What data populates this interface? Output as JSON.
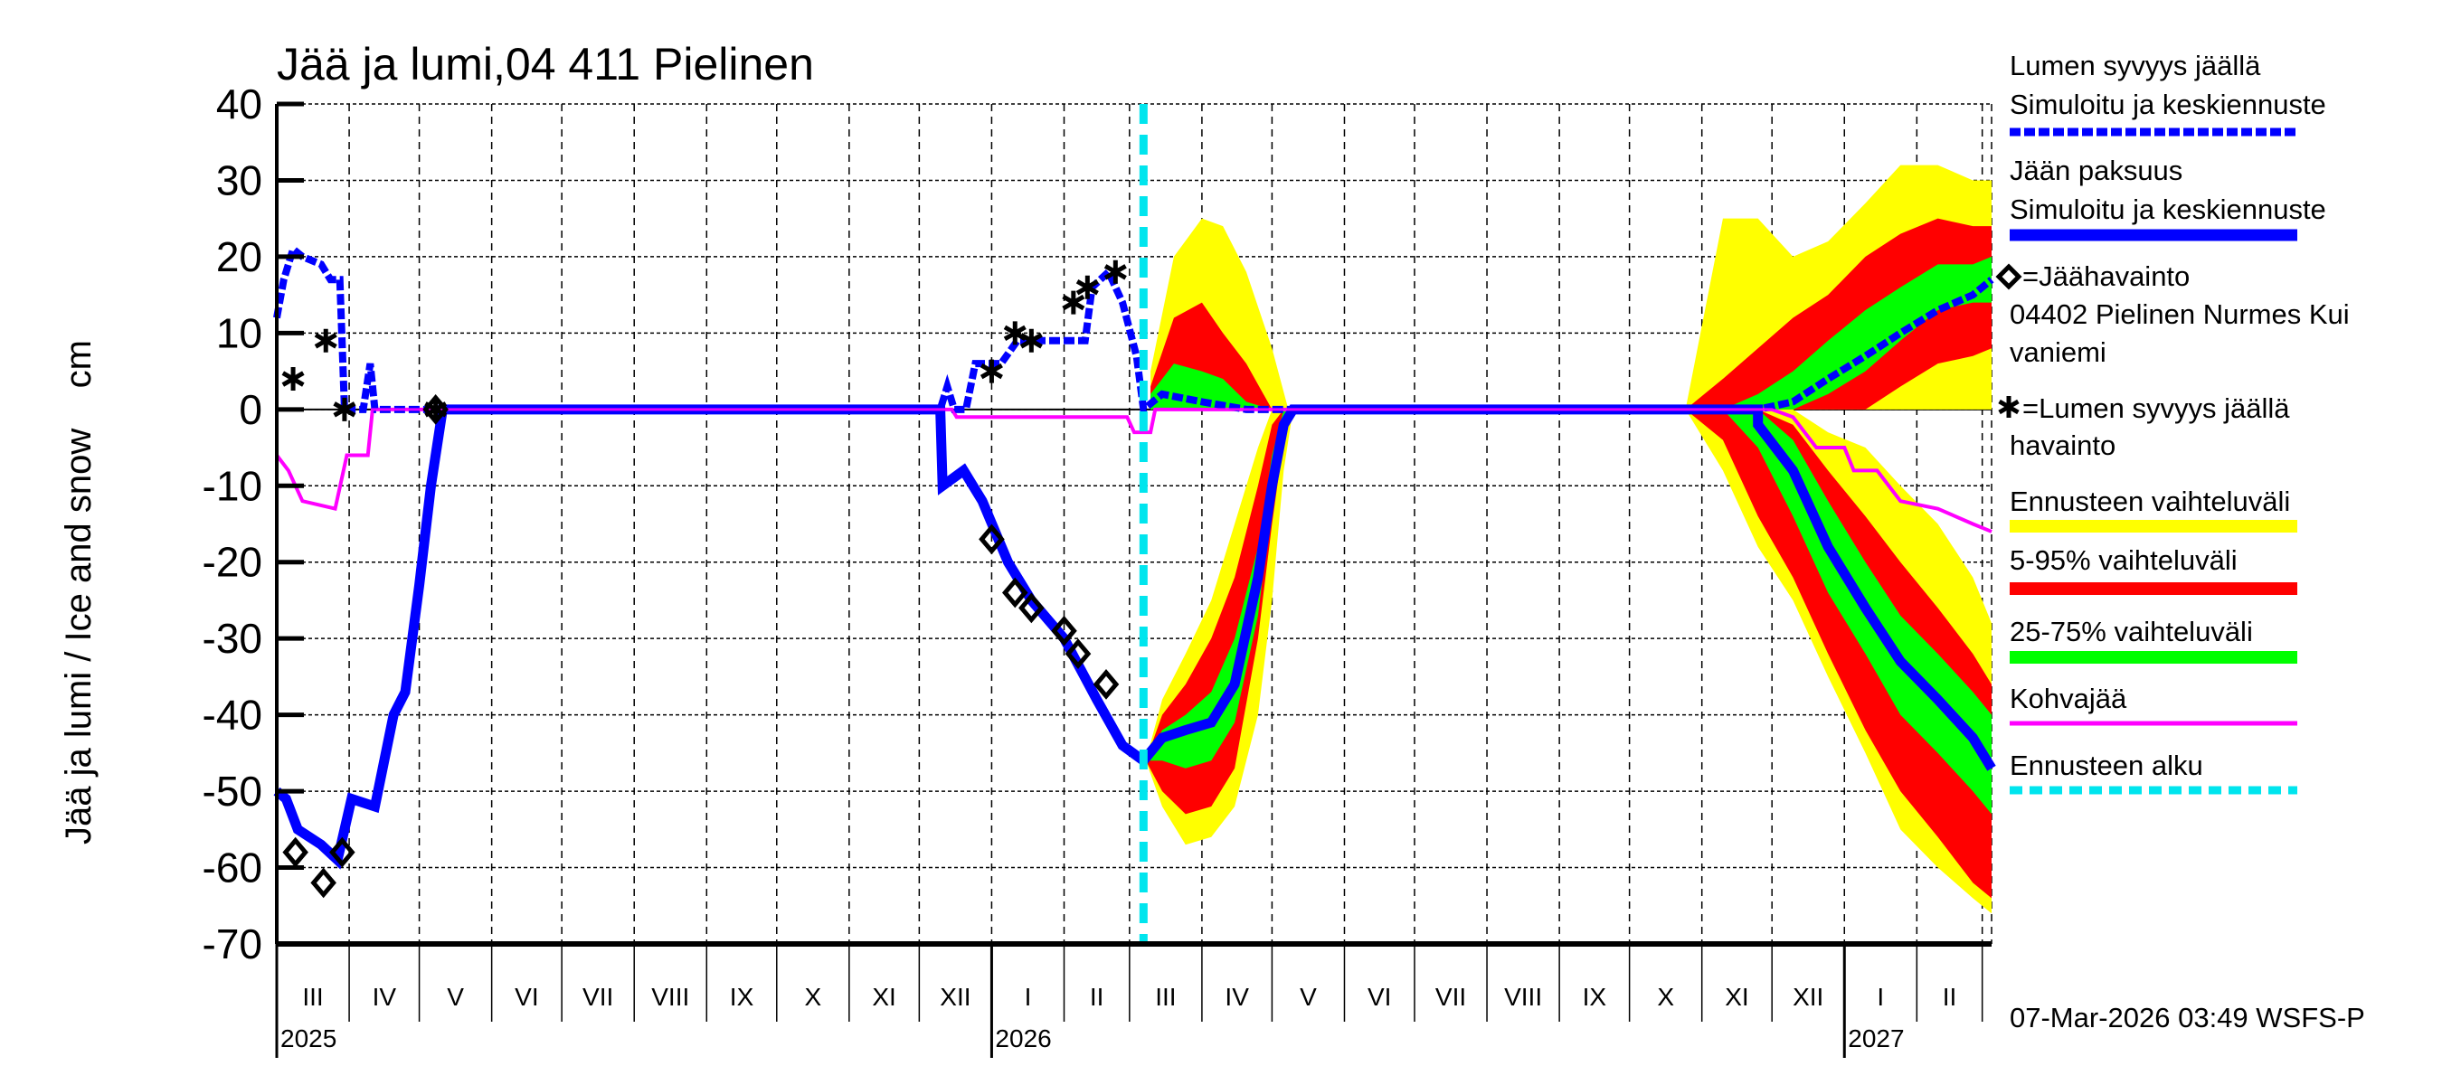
{
  "chart_data": {
    "type": "area",
    "title": "Jää ja lumi,04 411 Pielinen",
    "ylabel": "Jää ja lumi / Ice and snow    cm",
    "xlabel": "",
    "ylim": [
      -70,
      40
    ],
    "yticks": [
      "40",
      "30",
      "20",
      "10",
      "0",
      "-10",
      "-20",
      "-30",
      "-40",
      "-50",
      "-60",
      "-70"
    ],
    "xlim": [
      "2025-03-01",
      "2027-03-05"
    ],
    "grid": true,
    "month_labels": [
      {
        "date": "2025-03-01",
        "label": "III"
      },
      {
        "date": "2025-04-01",
        "label": "IV"
      },
      {
        "date": "2025-05-01",
        "label": "V"
      },
      {
        "date": "2025-06-01",
        "label": "VI"
      },
      {
        "date": "2025-07-01",
        "label": "VII"
      },
      {
        "date": "2025-08-01",
        "label": "VIII"
      },
      {
        "date": "2025-09-01",
        "label": "IX"
      },
      {
        "date": "2025-10-01",
        "label": "X"
      },
      {
        "date": "2025-11-01",
        "label": "XI"
      },
      {
        "date": "2025-12-01",
        "label": "XII"
      },
      {
        "date": "2026-01-01",
        "label": "I"
      },
      {
        "date": "2026-02-01",
        "label": "II"
      },
      {
        "date": "2026-03-01",
        "label": "III"
      },
      {
        "date": "2026-04-01",
        "label": "IV"
      },
      {
        "date": "2026-05-01",
        "label": "V"
      },
      {
        "date": "2026-06-01",
        "label": "VI"
      },
      {
        "date": "2026-07-01",
        "label": "VII"
      },
      {
        "date": "2026-08-01",
        "label": "VIII"
      },
      {
        "date": "2026-09-01",
        "label": "IX"
      },
      {
        "date": "2026-10-01",
        "label": "X"
      },
      {
        "date": "2026-11-01",
        "label": "XI"
      },
      {
        "date": "2026-12-01",
        "label": "XII"
      },
      {
        "date": "2027-01-01",
        "label": "I"
      },
      {
        "date": "2027-02-01",
        "label": "II"
      },
      {
        "date": "2027-03-01",
        "label": ""
      }
    ],
    "year_labels": [
      {
        "date": "2025-03-01",
        "label": "2025"
      },
      {
        "date": "2026-01-01",
        "label": "2026"
      },
      {
        "date": "2027-01-01",
        "label": "2027"
      }
    ],
    "forecast_start": "2026-03-07",
    "colors": {
      "snow": "#0000ff",
      "ice": "#0000ff",
      "kohva": "#ff00ff",
      "range_full": "#ffff00",
      "range_5_95": "#ff0000",
      "range_25_75": "#00ff00",
      "forecast_start": "#00e5ee",
      "obs": "#000000"
    },
    "series": {
      "snow_simulated": [
        [
          "2025-03-01",
          12
        ],
        [
          "2025-03-04",
          17
        ],
        [
          "2025-03-08",
          21
        ],
        [
          "2025-03-12",
          20
        ],
        [
          "2025-03-20",
          19
        ],
        [
          "2025-03-24",
          17
        ],
        [
          "2025-03-28",
          17
        ],
        [
          "2025-03-30",
          0
        ],
        [
          "2025-04-07",
          0
        ],
        [
          "2025-04-10",
          6
        ],
        [
          "2025-04-12",
          0
        ],
        [
          "2025-12-10",
          0
        ],
        [
          "2025-12-13",
          3
        ],
        [
          "2025-12-16",
          0
        ],
        [
          "2025-12-21",
          0
        ],
        [
          "2025-12-25",
          6
        ],
        [
          "2026-01-05",
          6
        ],
        [
          "2026-01-12",
          9
        ],
        [
          "2026-02-10",
          9
        ],
        [
          "2026-02-13",
          16
        ],
        [
          "2026-02-20",
          18
        ],
        [
          "2026-02-26",
          14
        ],
        [
          "2026-03-04",
          7
        ],
        [
          "2026-03-07",
          0
        ],
        [
          "2026-03-15",
          2
        ],
        [
          "2026-04-01",
          1
        ],
        [
          "2026-04-20",
          0
        ],
        [
          "2026-10-25",
          0
        ],
        [
          "2026-11-25",
          0
        ],
        [
          "2026-12-10",
          1
        ],
        [
          "2026-12-25",
          4
        ],
        [
          "2027-01-10",
          7
        ],
        [
          "2027-01-25",
          10
        ],
        [
          "2027-02-10",
          13
        ],
        [
          "2027-02-25",
          15
        ],
        [
          "2027-03-05",
          17
        ]
      ],
      "ice_simulated": [
        [
          "2025-03-01",
          -50
        ],
        [
          "2025-03-05",
          -51
        ],
        [
          "2025-03-10",
          -55
        ],
        [
          "2025-03-20",
          -57
        ],
        [
          "2025-03-27",
          -59
        ],
        [
          "2025-04-02",
          -51
        ],
        [
          "2025-04-12",
          -52
        ],
        [
          "2025-04-20",
          -40
        ],
        [
          "2025-04-25",
          -37
        ],
        [
          "2025-05-01",
          -23
        ],
        [
          "2025-05-06",
          -10
        ],
        [
          "2025-05-11",
          0
        ],
        [
          "2025-12-10",
          0
        ],
        [
          "2025-12-11",
          -10
        ],
        [
          "2025-12-20",
          -8
        ],
        [
          "2025-12-28",
          -12
        ],
        [
          "2026-01-08",
          -20
        ],
        [
          "2026-01-18",
          -25
        ],
        [
          "2026-02-01",
          -30
        ],
        [
          "2026-02-15",
          -38
        ],
        [
          "2026-02-26",
          -44
        ],
        [
          "2026-03-07",
          -46
        ],
        [
          "2026-03-15",
          -43
        ],
        [
          "2026-03-25",
          -42
        ],
        [
          "2026-04-05",
          -41
        ],
        [
          "2026-04-15",
          -36
        ],
        [
          "2026-04-25",
          -22
        ],
        [
          "2026-05-01",
          -10
        ],
        [
          "2026-05-06",
          -2
        ],
        [
          "2026-05-10",
          0
        ],
        [
          "2026-11-25",
          0
        ],
        [
          "2026-11-25",
          -2
        ],
        [
          "2026-12-10",
          -8
        ],
        [
          "2026-12-25",
          -18
        ],
        [
          "2027-01-10",
          -26
        ],
        [
          "2027-01-25",
          -33
        ],
        [
          "2027-02-10",
          -38
        ],
        [
          "2027-02-25",
          -43
        ],
        [
          "2027-03-05",
          -47
        ]
      ],
      "kohva": [
        [
          "2025-03-01",
          -6
        ],
        [
          "2025-03-06",
          -8
        ],
        [
          "2025-03-12",
          -12
        ],
        [
          "2025-03-26",
          -13
        ],
        [
          "2025-03-31",
          -6
        ],
        [
          "2025-04-09",
          -6
        ],
        [
          "2025-04-11",
          0
        ],
        [
          "2025-12-15",
          0
        ],
        [
          "2025-12-17",
          -1
        ],
        [
          "2026-02-28",
          -1
        ],
        [
          "2026-03-03",
          -3
        ],
        [
          "2026-03-10",
          -3
        ],
        [
          "2026-03-12",
          0
        ],
        [
          "2026-12-01",
          0
        ],
        [
          "2026-12-10",
          -1
        ],
        [
          "2026-12-20",
          -5
        ],
        [
          "2027-01-01",
          -5
        ],
        [
          "2027-01-05",
          -8
        ],
        [
          "2027-01-15",
          -8
        ],
        [
          "2027-01-25",
          -12
        ],
        [
          "2027-02-10",
          -13
        ],
        [
          "2027-02-25",
          -15
        ],
        [
          "2027-03-05",
          -16
        ]
      ]
    },
    "bands": [
      {
        "range": "full",
        "dates": [
          "2026-03-10",
          "2026-03-20",
          "2026-04-01",
          "2026-04-10",
          "2026-04-20",
          "2026-05-01",
          "2026-05-08"
        ],
        "lo": [
          0,
          0,
          0,
          0,
          0,
          0,
          0
        ],
        "hi": [
          5,
          20,
          25,
          24,
          18,
          8,
          0
        ]
      },
      {
        "range": "5-95",
        "dates": [
          "2026-03-10",
          "2026-03-20",
          "2026-04-01",
          "2026-04-10",
          "2026-04-20",
          "2026-05-01",
          "2026-05-08"
        ],
        "lo": [
          0,
          0,
          0,
          0,
          0,
          0,
          0
        ],
        "hi": [
          3,
          12,
          14,
          10,
          6,
          0,
          0
        ]
      },
      {
        "range": "25-75",
        "dates": [
          "2026-03-10",
          "2026-03-20",
          "2026-04-01",
          "2026-04-10",
          "2026-04-20",
          "2026-05-01",
          "2026-05-08"
        ],
        "lo": [
          0,
          0,
          0,
          0,
          0,
          0,
          0
        ],
        "hi": [
          2,
          6,
          5,
          4,
          1,
          0,
          0
        ]
      },
      {
        "range": "full",
        "dates": [
          "2026-03-08",
          "2026-03-15",
          "2026-03-25",
          "2026-04-05",
          "2026-04-15",
          "2026-04-25",
          "2026-05-01",
          "2026-05-06",
          "2026-05-10"
        ],
        "lo": [
          -46,
          -52,
          -57,
          -56,
          -52,
          -40,
          -25,
          -8,
          0
        ],
        "hi": [
          -46,
          -38,
          -32,
          -25,
          -15,
          -5,
          0,
          0,
          0
        ]
      },
      {
        "range": "5-95",
        "dates": [
          "2026-03-08",
          "2026-03-15",
          "2026-03-25",
          "2026-04-05",
          "2026-04-15",
          "2026-04-25",
          "2026-05-01",
          "2026-05-06",
          "2026-05-10"
        ],
        "lo": [
          -46,
          -50,
          -53,
          -52,
          -47,
          -30,
          -15,
          -4,
          0
        ],
        "hi": [
          -46,
          -40,
          -36,
          -30,
          -22,
          -10,
          -2,
          0,
          0
        ]
      },
      {
        "range": "25-75",
        "dates": [
          "2026-03-08",
          "2026-03-15",
          "2026-03-25",
          "2026-04-05",
          "2026-04-15",
          "2026-04-25",
          "2026-05-01",
          "2026-05-06",
          "2026-05-10"
        ],
        "lo": [
          -46,
          -46,
          -47,
          -46,
          -41,
          -27,
          -12,
          -3,
          0
        ],
        "hi": [
          -46,
          -42,
          -40,
          -37,
          -30,
          -18,
          -6,
          0,
          0
        ]
      },
      {
        "range": "full",
        "dates": [
          "2026-10-25",
          "2026-11-10",
          "2026-11-25",
          "2026-12-10",
          "2026-12-25",
          "2027-01-10",
          "2027-01-25",
          "2027-02-10",
          "2027-02-25",
          "2027-03-05"
        ],
        "lo": [
          0,
          0,
          0,
          0,
          0,
          0,
          0,
          0,
          0,
          0
        ],
        "hi": [
          0,
          25,
          25,
          20,
          22,
          27,
          32,
          32,
          30,
          30
        ]
      },
      {
        "range": "5-95",
        "dates": [
          "2026-10-25",
          "2026-11-10",
          "2026-11-25",
          "2026-12-10",
          "2026-12-25",
          "2027-01-10",
          "2027-01-25",
          "2027-02-10",
          "2027-02-25",
          "2027-03-05"
        ],
        "lo": [
          0,
          0,
          0,
          0,
          0,
          0,
          3,
          6,
          7,
          8
        ],
        "hi": [
          0,
          4,
          8,
          12,
          15,
          20,
          23,
          25,
          24,
          24
        ]
      },
      {
        "range": "25-75",
        "dates": [
          "2026-10-25",
          "2026-11-10",
          "2026-11-25",
          "2026-12-10",
          "2026-12-25",
          "2027-01-10",
          "2027-01-25",
          "2027-02-10",
          "2027-02-25",
          "2027-03-05"
        ],
        "lo": [
          0,
          0,
          0,
          0,
          2,
          5,
          9,
          13,
          14,
          14
        ],
        "hi": [
          0,
          0,
          2,
          5,
          9,
          13,
          16,
          19,
          19,
          20
        ]
      },
      {
        "range": "full",
        "dates": [
          "2026-10-25",
          "2026-11-10",
          "2026-11-25",
          "2026-12-10",
          "2026-12-25",
          "2027-01-10",
          "2027-01-25",
          "2027-02-10",
          "2027-02-25",
          "2027-03-05"
        ],
        "lo": [
          0,
          -8,
          -18,
          -25,
          -35,
          -45,
          -55,
          -60,
          -64,
          -66
        ],
        "hi": [
          0,
          0,
          0,
          0,
          -3,
          -5,
          -10,
          -15,
          -22,
          -28
        ]
      },
      {
        "range": "5-95",
        "dates": [
          "2026-10-25",
          "2026-11-10",
          "2026-11-25",
          "2026-12-10",
          "2026-12-25",
          "2027-01-10",
          "2027-01-25",
          "2027-02-10",
          "2027-02-25",
          "2027-03-05"
        ],
        "lo": [
          0,
          -4,
          -14,
          -22,
          -32,
          -42,
          -50,
          -56,
          -62,
          -64
        ],
        "hi": [
          0,
          0,
          0,
          -2,
          -8,
          -14,
          -20,
          -26,
          -32,
          -36
        ]
      },
      {
        "range": "25-75",
        "dates": [
          "2026-10-25",
          "2026-11-10",
          "2026-11-25",
          "2026-12-10",
          "2026-12-25",
          "2027-01-10",
          "2027-01-25",
          "2027-02-10",
          "2027-02-25",
          "2027-03-05"
        ],
        "lo": [
          0,
          0,
          -5,
          -14,
          -24,
          -32,
          -40,
          -45,
          -50,
          -53
        ],
        "hi": [
          0,
          0,
          0,
          -4,
          -12,
          -20,
          -27,
          -32,
          -37,
          -40
        ]
      }
    ],
    "ice_observations": [
      [
        "2025-03-09",
        -58
      ],
      [
        "2025-03-21",
        -62
      ],
      [
        "2025-03-29",
        -58
      ],
      [
        "2025-05-08",
        0
      ],
      [
        "2026-01-01",
        -17
      ],
      [
        "2026-01-11",
        -24
      ],
      [
        "2026-01-18",
        -26
      ],
      [
        "2026-02-01",
        -29
      ],
      [
        "2026-02-07",
        -32
      ],
      [
        "2026-02-19",
        -36
      ]
    ],
    "snow_observations": [
      [
        "2025-03-08",
        4
      ],
      [
        "2025-03-22",
        9
      ],
      [
        "2025-03-30",
        0
      ],
      [
        "2025-05-08",
        0
      ],
      [
        "2026-01-01",
        5
      ],
      [
        "2026-01-11",
        10
      ],
      [
        "2026-01-18",
        9
      ],
      [
        "2026-02-05",
        14
      ],
      [
        "2026-02-11",
        16
      ],
      [
        "2026-02-23",
        18
      ]
    ]
  },
  "legend": {
    "snow": [
      "Lumen syvyys jäällä",
      "Simuloitu ja keskiennuste"
    ],
    "ice": [
      "Jään paksuus",
      "Simuloitu ja keskiennuste"
    ],
    "ice_obs": [
      "=Jäähavainto",
      "04402 Pielinen Nurmes Kui",
      "vaniemi"
    ],
    "snow_obs": [
      "=Lumen syvyys jäällä",
      "havainto"
    ],
    "range_full": "Ennusteen vaihteluväli",
    "range_5_95": "5-95% vaihteluväli",
    "range_25_75": "25-75% vaihteluväli",
    "kohva": "Kohvajää",
    "forecast_start": "Ennusteen alku"
  },
  "footer": "07-Mar-2026 03:49 WSFS-P"
}
